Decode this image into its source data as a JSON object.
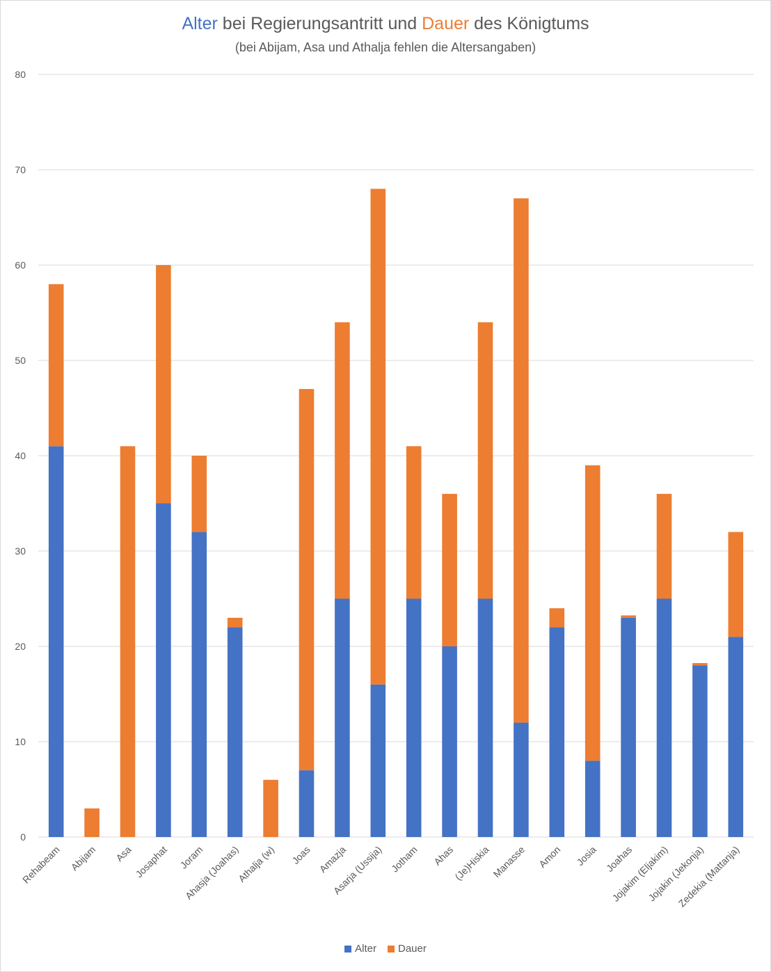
{
  "chart_data": {
    "type": "bar",
    "stacked": true,
    "title_parts": [
      "Alter",
      " bei Regierungsantritt und ",
      "Dauer",
      " des Königtums"
    ],
    "subtitle": "(bei Abijam, Asa und Athalja fehlen die Altersangaben)",
    "categories": [
      "Rehabeam",
      "Abijam",
      "Asa",
      "Josaphat",
      "Joram",
      "Ahasja (Joahas)",
      "Athalja (w)",
      "Joas",
      "Amazja",
      "Asarja (Ussija)",
      "Jotham",
      "Ahas",
      "(Je)Hiskia",
      "Manasse",
      "Amon",
      "Josia",
      "Joahas",
      "Jojakim (Eljakim)",
      "Jojakin (Jekonja)",
      "Zedekia (Mattanja)"
    ],
    "series": [
      {
        "name": "Alter",
        "color": "#4472C4",
        "values": [
          41,
          0,
          0,
          35,
          32,
          22,
          0,
          7,
          25,
          16,
          25,
          20,
          25,
          12,
          22,
          8,
          23,
          25,
          18,
          21
        ]
      },
      {
        "name": "Dauer",
        "color": "#ED7D31",
        "values": [
          17,
          3,
          41,
          25,
          8,
          1,
          6,
          40,
          29,
          52,
          16,
          16,
          29,
          55,
          2,
          31,
          0.25,
          11,
          0.25,
          11
        ]
      }
    ],
    "ylim": [
      0,
      80
    ],
    "yticks": [
      "0",
      "10",
      "20",
      "30",
      "40",
      "50",
      "60",
      "70",
      "80"
    ],
    "grid": true,
    "legend": "bottom"
  }
}
